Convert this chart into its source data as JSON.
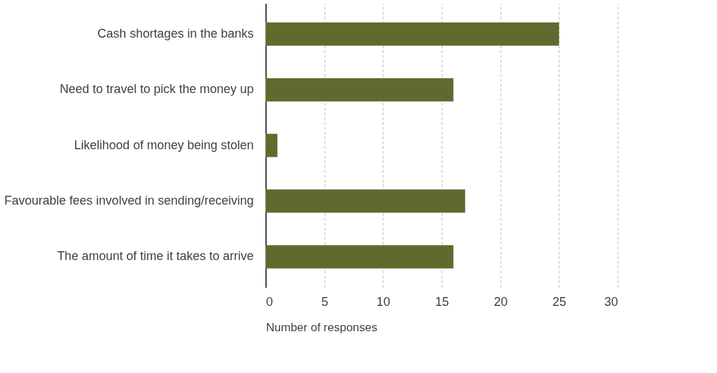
{
  "chart_data": {
    "type": "bar",
    "orientation": "horizontal",
    "xlabel": "Number of responses",
    "categories": [
      "Cash shortages in the banks",
      "Need to travel to pick the money up",
      "Likelihood of money being stolen",
      "Favourable fees involved in sending/receiving",
      "The amount of time it takes to arrive"
    ],
    "values": [
      25,
      16,
      1,
      17,
      16
    ],
    "color": "#5f6b2e",
    "xlim": [
      0,
      30
    ],
    "xticks": [
      0,
      5,
      10,
      15,
      20,
      25,
      30
    ],
    "grid": "x"
  }
}
